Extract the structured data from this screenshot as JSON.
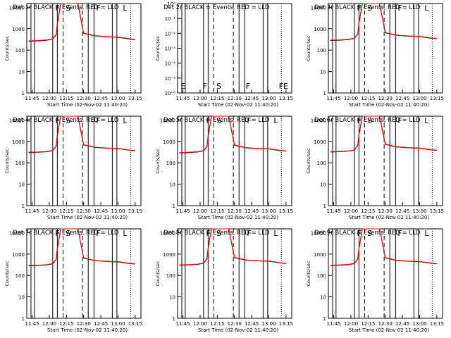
{
  "chart_data": [
    {
      "type": "line",
      "title": "Det 1r BLACK = Events, RED = LLD",
      "xlabel": "Start Time (02-Nov-02 11:40:20)",
      "ylabel": "Counts/sec",
      "x_ticks": [
        "11:45",
        "12:00",
        "12:15",
        "12:30",
        "12:45",
        "13:00",
        "13:15"
      ],
      "y_ticks": [
        "1",
        "10",
        "100",
        "1000",
        "10000"
      ],
      "ylim": [
        1,
        15000
      ],
      "yscale": "log",
      "flags": [
        "F",
        "S",
        "F",
        "L"
      ],
      "series": [
        {
          "color": "#000000",
          "x": [
            "11:42",
            "11:50",
            "11:58",
            "12:03",
            "12:06",
            "12:07",
            "12:10",
            "12:13",
            "12:20",
            "12:25",
            "12:30",
            "12:40",
            "12:50",
            "13:00",
            "13:10",
            "13:15"
          ],
          "values": [
            260,
            270,
            290,
            330,
            520,
            1600,
            15000,
            15000,
            15000,
            15000,
            600,
            460,
            420,
            400,
            330,
            310
          ]
        },
        {
          "color": "#ff0000",
          "x": [
            "11:42",
            "11:50",
            "11:58",
            "12:03",
            "12:06",
            "12:07",
            "12:10",
            "12:13",
            "12:20",
            "12:25",
            "12:30",
            "12:40",
            "12:50",
            "13:00",
            "13:10",
            "13:15"
          ],
          "values": [
            270,
            280,
            300,
            340,
            540,
            1700,
            15000,
            15000,
            15000,
            15000,
            620,
            470,
            430,
            410,
            340,
            320
          ]
        }
      ]
    },
    {
      "type": "line",
      "title": "Det 2r BLACK = Events, RED = LLD",
      "xlabel": "Start Time (02-Nov-02 11:40:20)",
      "ylabel": "Counts/sec",
      "x_ticks": [
        "11:45",
        "12:00",
        "12:15",
        "12:30",
        "12:45",
        "13:00",
        "13:15"
      ],
      "y_ticks": [
        "10⁻⁶",
        "10⁻⁵",
        "10⁻⁴",
        "10⁻³",
        "10⁻²",
        "10⁻¹",
        "10⁰"
      ],
      "ylim": [
        1e-06,
        1
      ],
      "yscale": "log",
      "flags": [
        "E",
        "F",
        "S",
        "F",
        "FE"
      ],
      "series": []
    },
    {
      "type": "line",
      "title": "Det 3r BLACK = Events, RED = LLD",
      "xlabel": "Start Time (02-Nov-02 11:40:20)",
      "ylabel": "Counts/sec",
      "x_ticks": [
        "11:45",
        "12:00",
        "12:15",
        "12:30",
        "12:45",
        "13:00",
        "13:15"
      ],
      "y_ticks": [
        "1",
        "10",
        "100",
        "1000",
        "10000"
      ],
      "ylim": [
        1,
        15000
      ],
      "yscale": "log",
      "flags": [
        "F",
        "S",
        "F",
        "L"
      ],
      "series": [
        {
          "color": "#000000",
          "x": [
            "11:42",
            "11:50",
            "11:58",
            "12:03",
            "12:06",
            "12:07",
            "12:10",
            "12:13",
            "12:20",
            "12:25",
            "12:30",
            "12:40",
            "12:50",
            "13:00",
            "13:10",
            "13:15"
          ],
          "values": [
            280,
            290,
            310,
            350,
            560,
            1700,
            15000,
            15000,
            15000,
            15000,
            640,
            490,
            450,
            430,
            360,
            340
          ]
        },
        {
          "color": "#ff0000",
          "x": [
            "11:42",
            "11:50",
            "11:58",
            "12:03",
            "12:06",
            "12:07",
            "12:10",
            "12:13",
            "12:20",
            "12:25",
            "12:30",
            "12:40",
            "12:50",
            "13:00",
            "13:10",
            "13:15"
          ],
          "values": [
            290,
            300,
            320,
            360,
            580,
            1800,
            15000,
            15000,
            15000,
            15000,
            660,
            500,
            460,
            440,
            370,
            350
          ]
        }
      ]
    },
    {
      "type": "line",
      "title": "Det 4r BLACK = Events, RED = LLD",
      "xlabel": "Start Time (02-Nov-02 11:40:20)",
      "ylabel": "Counts/sec",
      "x_ticks": [
        "11:45",
        "12:00",
        "12:15",
        "12:30",
        "12:45",
        "13:00",
        "13:15"
      ],
      "y_ticks": [
        "1",
        "10",
        "100",
        "1000",
        "10000"
      ],
      "ylim": [
        1,
        15000
      ],
      "yscale": "log",
      "flags": [
        "F",
        "S",
        "F",
        "L"
      ],
      "series": [
        {
          "color": "#000000",
          "x": [
            "11:42",
            "11:50",
            "11:58",
            "12:03",
            "12:06",
            "12:07",
            "12:10",
            "12:13",
            "12:20",
            "12:25",
            "12:30",
            "12:40",
            "12:50",
            "13:00",
            "13:10",
            "13:15"
          ],
          "values": [
            300,
            310,
            330,
            370,
            600,
            1800,
            15000,
            15000,
            15000,
            15000,
            680,
            520,
            480,
            460,
            380,
            360
          ]
        },
        {
          "color": "#ff0000",
          "x": [
            "11:42",
            "11:50",
            "11:58",
            "12:03",
            "12:06",
            "12:07",
            "12:10",
            "12:13",
            "12:20",
            "12:25",
            "12:30",
            "12:40",
            "12:50",
            "13:00",
            "13:10",
            "13:15"
          ],
          "values": [
            310,
            320,
            340,
            380,
            620,
            1900,
            15000,
            15000,
            15000,
            15000,
            700,
            530,
            490,
            470,
            390,
            370
          ]
        }
      ]
    },
    {
      "type": "line",
      "title": "Det 5r BLACK = Events, RED = LLD",
      "xlabel": "Start Time (02-Nov-02 11:40:20)",
      "ylabel": "Counts/sec",
      "x_ticks": [
        "11:45",
        "12:00",
        "12:15",
        "12:30",
        "12:45",
        "13:00",
        "13:15"
      ],
      "y_ticks": [
        "1",
        "10",
        "100",
        "1000",
        "10000"
      ],
      "ylim": [
        1,
        15000
      ],
      "yscale": "log",
      "flags": [
        "F",
        "S",
        "F",
        "L"
      ],
      "series": [
        {
          "color": "#000000",
          "x": [
            "11:42",
            "11:50",
            "11:58",
            "12:03",
            "12:06",
            "12:07",
            "12:10",
            "12:13",
            "12:20",
            "12:25",
            "12:30",
            "12:40",
            "12:50",
            "13:00",
            "13:10",
            "13:15"
          ],
          "values": [
            290,
            300,
            320,
            360,
            580,
            1700,
            15000,
            15000,
            15000,
            15000,
            660,
            500,
            460,
            440,
            370,
            350
          ]
        },
        {
          "color": "#ff0000",
          "x": [
            "11:42",
            "11:50",
            "11:58",
            "12:03",
            "12:06",
            "12:07",
            "12:10",
            "12:13",
            "12:20",
            "12:25",
            "12:30",
            "12:40",
            "12:50",
            "13:00",
            "13:10",
            "13:15"
          ],
          "values": [
            300,
            310,
            330,
            370,
            600,
            1800,
            15000,
            15000,
            15000,
            15000,
            680,
            510,
            470,
            450,
            380,
            360
          ]
        }
      ]
    },
    {
      "type": "line",
      "title": "Det 6r BLACK = Events, RED = LLD",
      "xlabel": "Start Time (02-Nov-02 11:40:20)",
      "ylabel": "Counts/sec",
      "x_ticks": [
        "11:45",
        "12:00",
        "12:15",
        "12:30",
        "12:45",
        "13:00",
        "13:15"
      ],
      "y_ticks": [
        "1",
        "10",
        "100",
        "1000",
        "10000"
      ],
      "ylim": [
        1,
        15000
      ],
      "yscale": "log",
      "flags": [
        "F",
        "S",
        "F",
        "L"
      ],
      "series": [
        {
          "color": "#000000",
          "x": [
            "11:42",
            "11:50",
            "11:58",
            "12:03",
            "12:06",
            "12:07",
            "12:10",
            "12:13",
            "12:20",
            "12:25",
            "12:30",
            "12:40",
            "12:50",
            "13:00",
            "13:10",
            "13:15"
          ],
          "values": [
            320,
            330,
            350,
            390,
            640,
            1900,
            15000,
            15000,
            15000,
            15000,
            720,
            550,
            500,
            480,
            400,
            380
          ]
        },
        {
          "color": "#ff0000",
          "x": [
            "11:42",
            "11:50",
            "11:58",
            "12:03",
            "12:06",
            "12:07",
            "12:10",
            "12:13",
            "12:20",
            "12:25",
            "12:30",
            "12:40",
            "12:50",
            "13:00",
            "13:10",
            "13:15"
          ],
          "values": [
            330,
            340,
            360,
            400,
            660,
            2000,
            15000,
            15000,
            15000,
            15000,
            740,
            560,
            510,
            490,
            410,
            390
          ]
        }
      ]
    },
    {
      "type": "line",
      "title": "Det 7r BLACK = Events, RED = LLD",
      "xlabel": "Start Time (02-Nov-02 11:40:20)",
      "ylabel": "Counts/sec",
      "x_ticks": [
        "11:45",
        "12:00",
        "12:15",
        "12:30",
        "12:45",
        "13:00",
        "13:15"
      ],
      "y_ticks": [
        "1",
        "10",
        "100",
        "1000",
        "10000"
      ],
      "ylim": [
        1,
        15000
      ],
      "yscale": "log",
      "flags": [
        "F",
        "S",
        "F",
        "L"
      ],
      "series": [
        {
          "color": "#000000",
          "x": [
            "11:42",
            "11:50",
            "11:58",
            "12:03",
            "12:06",
            "12:07",
            "12:10",
            "12:13",
            "12:20",
            "12:25",
            "12:30",
            "12:40",
            "12:50",
            "13:00",
            "13:10",
            "13:15"
          ],
          "values": [
            280,
            290,
            310,
            350,
            560,
            1700,
            15000,
            15000,
            15000,
            15000,
            640,
            490,
            450,
            430,
            360,
            340
          ]
        },
        {
          "color": "#ff0000",
          "x": [
            "11:42",
            "11:50",
            "11:58",
            "12:03",
            "12:06",
            "12:07",
            "12:10",
            "12:13",
            "12:20",
            "12:25",
            "12:30",
            "12:40",
            "12:50",
            "13:00",
            "13:10",
            "13:15"
          ],
          "values": [
            290,
            300,
            320,
            360,
            580,
            1800,
            15000,
            15000,
            15000,
            15000,
            660,
            500,
            460,
            440,
            370,
            350
          ]
        }
      ]
    },
    {
      "type": "line",
      "title": "Det 8r BLACK = Events, RED = LLD",
      "xlabel": "Start Time (02-Nov-02 11:40:20)",
      "ylabel": "Counts/sec",
      "x_ticks": [
        "11:45",
        "12:00",
        "12:15",
        "12:30",
        "12:45",
        "13:00",
        "13:15"
      ],
      "y_ticks": [
        "1",
        "10",
        "100",
        "1000",
        "10000"
      ],
      "ylim": [
        1,
        15000
      ],
      "yscale": "log",
      "flags": [
        "F",
        "S",
        "F",
        "L"
      ],
      "series": [
        {
          "color": "#000000",
          "x": [
            "11:42",
            "11:50",
            "11:58",
            "12:03",
            "12:06",
            "12:07",
            "12:10",
            "12:13",
            "12:20",
            "12:25",
            "12:30",
            "12:40",
            "12:50",
            "13:00",
            "13:10",
            "13:15"
          ],
          "values": [
            300,
            310,
            330,
            370,
            600,
            1800,
            15000,
            15000,
            15000,
            15000,
            680,
            520,
            480,
            460,
            380,
            360
          ]
        },
        {
          "color": "#ff0000",
          "x": [
            "11:42",
            "11:50",
            "11:58",
            "12:03",
            "12:06",
            "12:07",
            "12:10",
            "12:13",
            "12:20",
            "12:25",
            "12:30",
            "12:40",
            "12:50",
            "13:00",
            "13:10",
            "13:15"
          ],
          "values": [
            310,
            320,
            340,
            380,
            620,
            1900,
            15000,
            15000,
            15000,
            15000,
            700,
            530,
            490,
            470,
            390,
            370
          ]
        }
      ]
    },
    {
      "type": "line",
      "title": "Det 9r BLACK = Events, RED = LLD",
      "xlabel": "Start Time (02-Nov-02 11:40:20)",
      "ylabel": "Counts/sec",
      "x_ticks": [
        "11:45",
        "12:00",
        "12:15",
        "12:30",
        "12:45",
        "13:00",
        "13:15"
      ],
      "y_ticks": [
        "1",
        "10",
        "100",
        "1000",
        "10000"
      ],
      "ylim": [
        1,
        15000
      ],
      "yscale": "log",
      "flags": [
        "F",
        "S",
        "F",
        "L"
      ],
      "series": [
        {
          "color": "#000000",
          "x": [
            "11:42",
            "11:50",
            "11:58",
            "12:03",
            "12:06",
            "12:07",
            "12:10",
            "12:13",
            "12:20",
            "12:25",
            "12:30",
            "12:40",
            "12:50",
            "13:00",
            "13:10",
            "13:15"
          ],
          "values": [
            290,
            300,
            320,
            360,
            580,
            1700,
            15000,
            15000,
            15000,
            15000,
            660,
            500,
            460,
            440,
            370,
            350
          ]
        },
        {
          "color": "#ff0000",
          "x": [
            "11:42",
            "11:50",
            "11:58",
            "12:03",
            "12:06",
            "12:07",
            "12:10",
            "12:13",
            "12:20",
            "12:25",
            "12:30",
            "12:40",
            "12:50",
            "13:00",
            "13:10",
            "13:15"
          ],
          "values": [
            300,
            310,
            330,
            370,
            600,
            1800,
            15000,
            15000,
            15000,
            15000,
            680,
            510,
            470,
            450,
            380,
            360
          ]
        }
      ]
    }
  ]
}
